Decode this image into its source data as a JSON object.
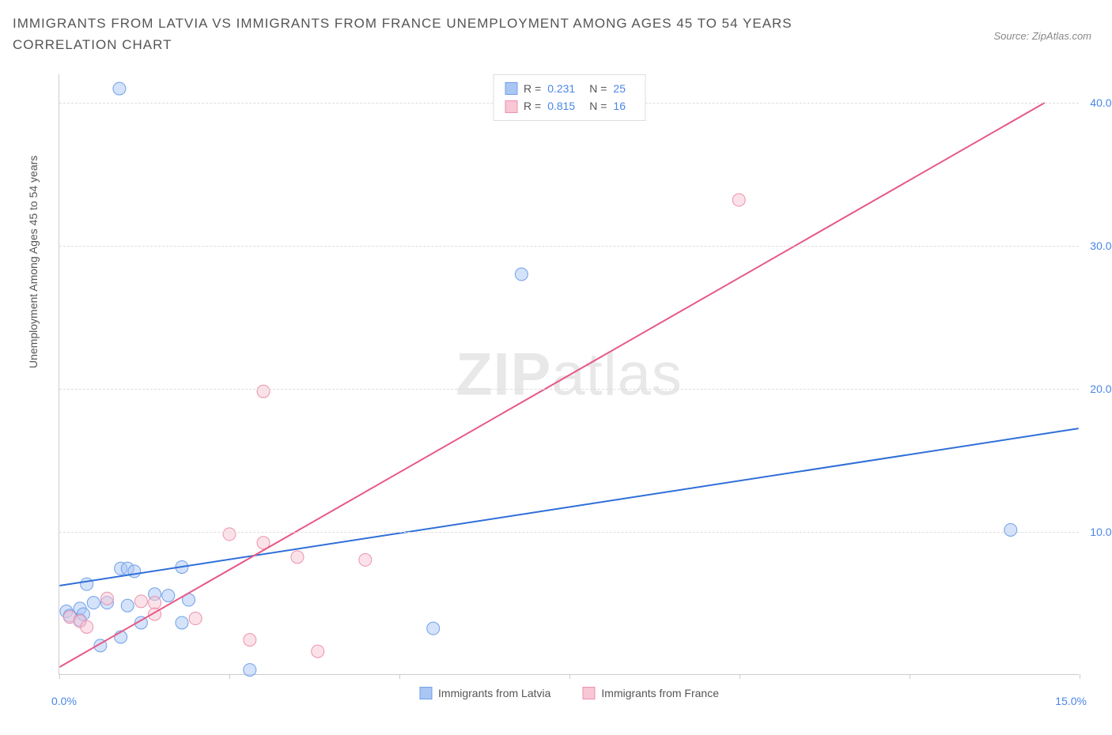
{
  "title": "IMMIGRANTS FROM LATVIA VS IMMIGRANTS FROM FRANCE UNEMPLOYMENT AMONG AGES 45 TO 54 YEARS CORRELATION CHART",
  "source": "Source: ZipAtlas.com",
  "watermark_zip": "ZIP",
  "watermark_atlas": "atlas",
  "y_axis_label": "Unemployment Among Ages 45 to 54 years",
  "chart": {
    "type": "scatter",
    "background_color": "#ffffff",
    "grid_color": "#dddddd",
    "axis_color": "#cccccc",
    "xlim": [
      0,
      15
    ],
    "ylim": [
      0,
      42
    ],
    "x_ticks": [
      0,
      2.5,
      5,
      7.5,
      10,
      12.5,
      15
    ],
    "x_tick_labels": {
      "0": "0.0%",
      "15": "15.0%"
    },
    "y_ticks": [
      10,
      20,
      30,
      40
    ],
    "y_tick_labels": {
      "10": "10.0%",
      "20": "20.0%",
      "30": "30.0%",
      "40": "40.0%"
    },
    "marker_size": 16,
    "marker_opacity": 0.5,
    "line_width": 2,
    "series": [
      {
        "name": "Immigrants from Latvia",
        "color_fill": "#a9c6f5",
        "color_stroke": "#6fa0e8",
        "line_color": "#2f6fd8",
        "r_value": "0.231",
        "n_value": "25",
        "points": [
          [
            0.88,
            41.0
          ],
          [
            6.8,
            28.0
          ],
          [
            14.0,
            10.1
          ],
          [
            1.8,
            7.5
          ],
          [
            0.9,
            7.4
          ],
          [
            1.0,
            7.4
          ],
          [
            1.1,
            7.2
          ],
          [
            0.4,
            6.3
          ],
          [
            1.4,
            5.6
          ],
          [
            1.6,
            5.5
          ],
          [
            1.9,
            5.2
          ],
          [
            0.7,
            5.0
          ],
          [
            0.3,
            4.6
          ],
          [
            0.1,
            4.4
          ],
          [
            0.15,
            4.1
          ],
          [
            0.3,
            3.8
          ],
          [
            1.2,
            3.6
          ],
          [
            1.8,
            3.6
          ],
          [
            1.0,
            4.8
          ],
          [
            0.9,
            2.6
          ],
          [
            0.6,
            2.0
          ],
          [
            2.8,
            0.3
          ],
          [
            5.5,
            3.2
          ],
          [
            0.35,
            4.2
          ],
          [
            0.5,
            5.0
          ]
        ],
        "trend": {
          "x1": 0,
          "y1": 6.2,
          "x2": 15,
          "y2": 17.2
        }
      },
      {
        "name": "Immigrants from France",
        "color_fill": "#f8c6d4",
        "color_stroke": "#eb92ad",
        "line_color": "#e75886",
        "r_value": "0.815",
        "n_value": "16",
        "points": [
          [
            10.0,
            33.2
          ],
          [
            3.0,
            19.8
          ],
          [
            2.5,
            9.8
          ],
          [
            3.0,
            9.2
          ],
          [
            3.5,
            8.2
          ],
          [
            4.5,
            8.0
          ],
          [
            0.7,
            5.3
          ],
          [
            1.2,
            5.1
          ],
          [
            1.4,
            5.0
          ],
          [
            1.4,
            4.2
          ],
          [
            2.0,
            3.9
          ],
          [
            0.15,
            4.0
          ],
          [
            0.3,
            3.7
          ],
          [
            2.8,
            2.4
          ],
          [
            3.8,
            1.6
          ],
          [
            0.4,
            3.3
          ]
        ],
        "trend": {
          "x1": 0,
          "y1": 0.5,
          "x2": 14.5,
          "y2": 40.0
        }
      }
    ]
  },
  "legend_labels": {
    "r_prefix": "R =",
    "n_prefix": "N ="
  }
}
